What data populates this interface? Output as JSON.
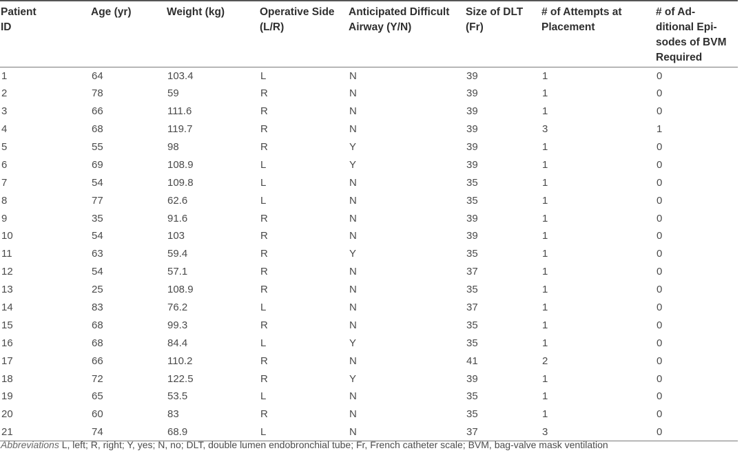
{
  "table": {
    "headers": [
      "Patient ID",
      "Age (yr)",
      "Weight (kg)",
      "Operative Side (L/R)",
      "Anticipated Difficult Airway (Y/N)",
      "Size of DLT (Fr)",
      "# of Attempts at Placement",
      "# of Ad-ditional Epi-sodes of BVM Required"
    ],
    "header_lines": [
      [
        "Patient",
        "ID"
      ],
      [
        "Age (yr)"
      ],
      [
        "Weight (kg)"
      ],
      [
        "Operative Side",
        "(L/R)"
      ],
      [
        "Anticipated Difficult",
        "Airway (Y/N)"
      ],
      [
        "Size of DLT",
        "(Fr)"
      ],
      [
        "# of Attempts at",
        "Placement"
      ],
      [
        "# of Ad-",
        "ditional Epi-",
        "sodes of BVM",
        "Required"
      ]
    ],
    "rows": [
      [
        "1",
        "64",
        "103.4",
        "L",
        "N",
        "39",
        "1",
        "0"
      ],
      [
        "2",
        "78",
        "59",
        "R",
        "N",
        "39",
        "1",
        "0"
      ],
      [
        "3",
        "66",
        "111.6",
        "R",
        "N",
        "39",
        "1",
        "0"
      ],
      [
        "4",
        "68",
        "119.7",
        "R",
        "N",
        "39",
        "3",
        "1"
      ],
      [
        "5",
        "55",
        "98",
        "R",
        "Y",
        "39",
        "1",
        "0"
      ],
      [
        "6",
        "69",
        "108.9",
        "L",
        "Y",
        "39",
        "1",
        "0"
      ],
      [
        "7",
        "54",
        "109.8",
        "L",
        "N",
        "35",
        "1",
        "0"
      ],
      [
        "8",
        "77",
        "62.6",
        "L",
        "N",
        "35",
        "1",
        "0"
      ],
      [
        "9",
        "35",
        "91.6",
        "R",
        "N",
        "39",
        "1",
        "0"
      ],
      [
        "10",
        "54",
        "103",
        "R",
        "N",
        "39",
        "1",
        "0"
      ],
      [
        "11",
        "63",
        "59.4",
        "R",
        "Y",
        "35",
        "1",
        "0"
      ],
      [
        "12",
        "54",
        "57.1",
        "R",
        "N",
        "37",
        "1",
        "0"
      ],
      [
        "13",
        "25",
        "108.9",
        "R",
        "N",
        "35",
        "1",
        "0"
      ],
      [
        "14",
        "83",
        "76.2",
        "L",
        "N",
        "37",
        "1",
        "0"
      ],
      [
        "15",
        "68",
        "99.3",
        "R",
        "N",
        "35",
        "1",
        "0"
      ],
      [
        "16",
        "68",
        "84.4",
        "L",
        "Y",
        "35",
        "1",
        "0"
      ],
      [
        "17",
        "66",
        "110.2",
        "R",
        "N",
        "41",
        "2",
        "0"
      ],
      [
        "18",
        "72",
        "122.5",
        "R",
        "Y",
        "39",
        "1",
        "0"
      ],
      [
        "19",
        "65",
        "53.5",
        "L",
        "N",
        "35",
        "1",
        "0"
      ],
      [
        "20",
        "60",
        "83",
        "R",
        "N",
        "35",
        "1",
        "0"
      ],
      [
        "21",
        "74",
        "68.9",
        "L",
        "N",
        "37",
        "3",
        "0"
      ]
    ]
  },
  "footnote": {
    "label": "Abbreviations",
    "text": " L, left; R, right; Y, yes; N, no; DLT, double lumen endobronchial tube; Fr, French catheter scale; BVM, bag-valve mask ventilation"
  }
}
